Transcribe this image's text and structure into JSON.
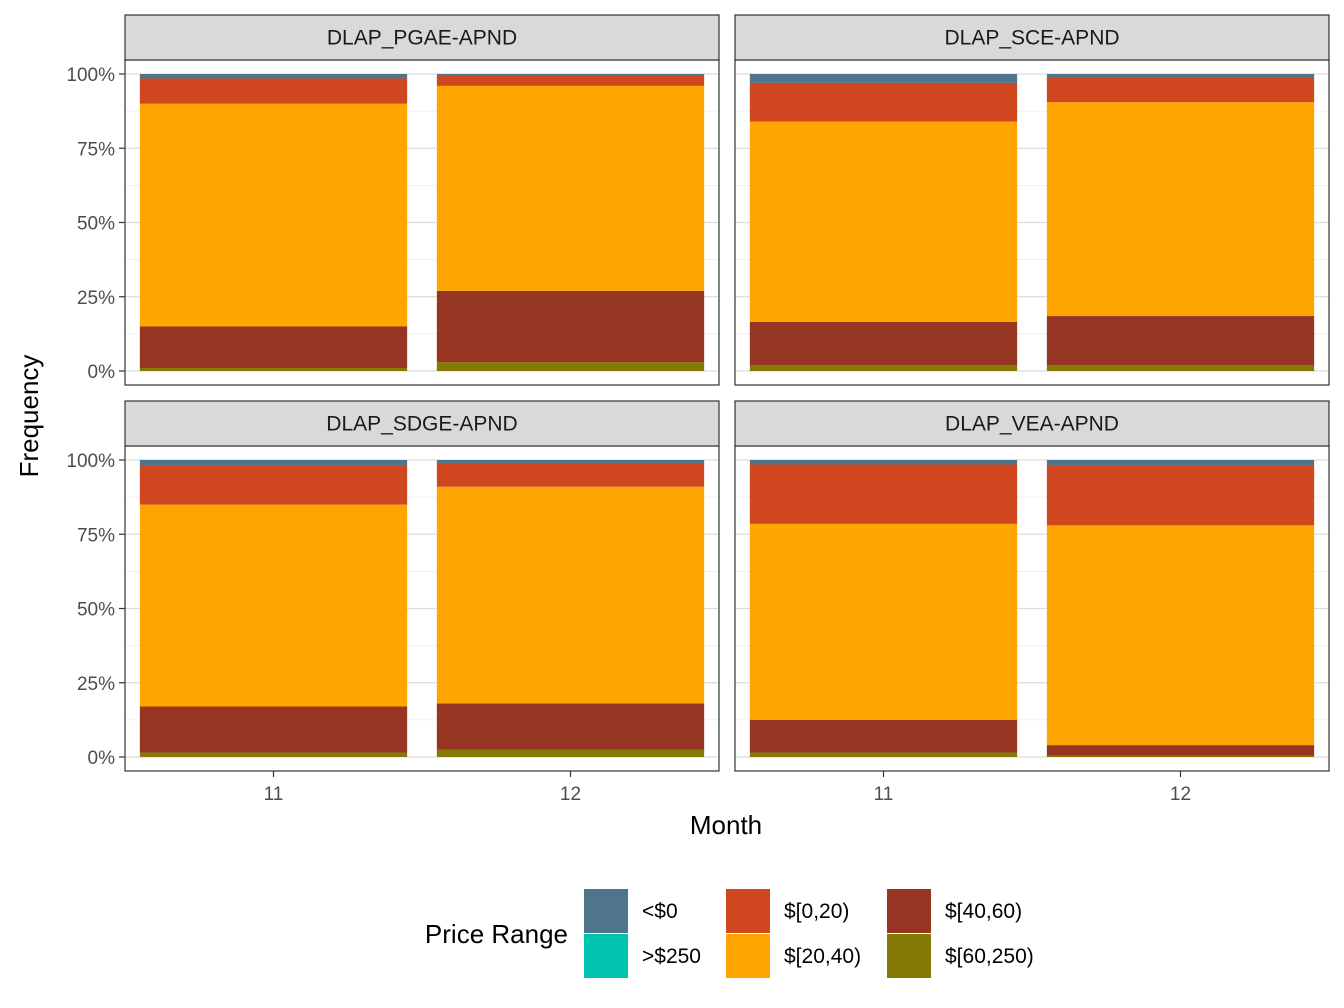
{
  "chart_data": {
    "type": "bar",
    "stacked": true,
    "xlabel": "Month",
    "ylabel": "Frequency",
    "ylim": [
      0,
      1
    ],
    "y_tick_labels": [
      "0%",
      "25%",
      "50%",
      "75%",
      "100%"
    ],
    "y_tick_values": [
      0,
      0.25,
      0.5,
      0.75,
      1.0
    ],
    "categories": [
      "11",
      "12"
    ],
    "grid": true,
    "legend": {
      "title": "Price Range",
      "placement": "bottom",
      "entries": [
        {
          "label": "<$0",
          "color": "#4E7589"
        },
        {
          "label": ">$250",
          "color": "#00C4B0"
        },
        {
          "label": "$[0,20)",
          "color": "#D0461F"
        },
        {
          "label": "$[20,40)",
          "color": "#FFA500"
        },
        {
          "label": "$[40,60)",
          "color": "#953522"
        },
        {
          "label": "$[60,250)",
          "color": "#857A05"
        }
      ]
    },
    "stack_order": [
      "$[60,250)",
      "$[40,60)",
      "$[20,40)",
      "$[0,20)",
      ">$250",
      "<$0"
    ],
    "panels": [
      {
        "title": "DLAP_PGAE-APND",
        "bars": [
          {
            "category": "11",
            "values": {
              "$[60,250)": 0.01,
              "$[40,60)": 0.14,
              "$[20,40)": 0.75,
              "$[0,20)": 0.085,
              ">$250": 0.0,
              "<$0": 0.015
            }
          },
          {
            "category": "12",
            "values": {
              "$[60,250)": 0.03,
              "$[40,60)": 0.24,
              "$[20,40)": 0.69,
              "$[0,20)": 0.035,
              ">$250": 0.0,
              "<$0": 0.005
            }
          }
        ]
      },
      {
        "title": "DLAP_SCE-APND",
        "bars": [
          {
            "category": "11",
            "values": {
              "$[60,250)": 0.02,
              "$[40,60)": 0.145,
              "$[20,40)": 0.675,
              "$[0,20)": 0.13,
              ">$250": 0.0,
              "<$0": 0.03
            }
          },
          {
            "category": "12",
            "values": {
              "$[60,250)": 0.02,
              "$[40,60)": 0.165,
              "$[20,40)": 0.72,
              "$[0,20)": 0.085,
              ">$250": 0.0,
              "<$0": 0.01
            }
          }
        ]
      },
      {
        "title": "DLAP_SDGE-APND",
        "bars": [
          {
            "category": "11",
            "values": {
              "$[60,250)": 0.015,
              "$[40,60)": 0.155,
              "$[20,40)": 0.68,
              "$[0,20)": 0.13,
              ">$250": 0.0,
              "<$0": 0.02
            }
          },
          {
            "category": "12",
            "values": {
              "$[60,250)": 0.025,
              "$[40,60)": 0.155,
              "$[20,40)": 0.73,
              "$[0,20)": 0.08,
              ">$250": 0.0,
              "<$0": 0.01
            }
          }
        ]
      },
      {
        "title": "DLAP_VEA-APND",
        "bars": [
          {
            "category": "11",
            "values": {
              "$[60,250)": 0.015,
              "$[40,60)": 0.11,
              "$[20,40)": 0.66,
              "$[0,20)": 0.2,
              ">$250": 0.0,
              "<$0": 0.015
            }
          },
          {
            "category": "12",
            "values": {
              "$[60,250)": 0.005,
              "$[40,60)": 0.035,
              "$[20,40)": 0.74,
              "$[0,20)": 0.2,
              ">$250": 0.0,
              "<$0": 0.02
            }
          }
        ]
      }
    ]
  }
}
